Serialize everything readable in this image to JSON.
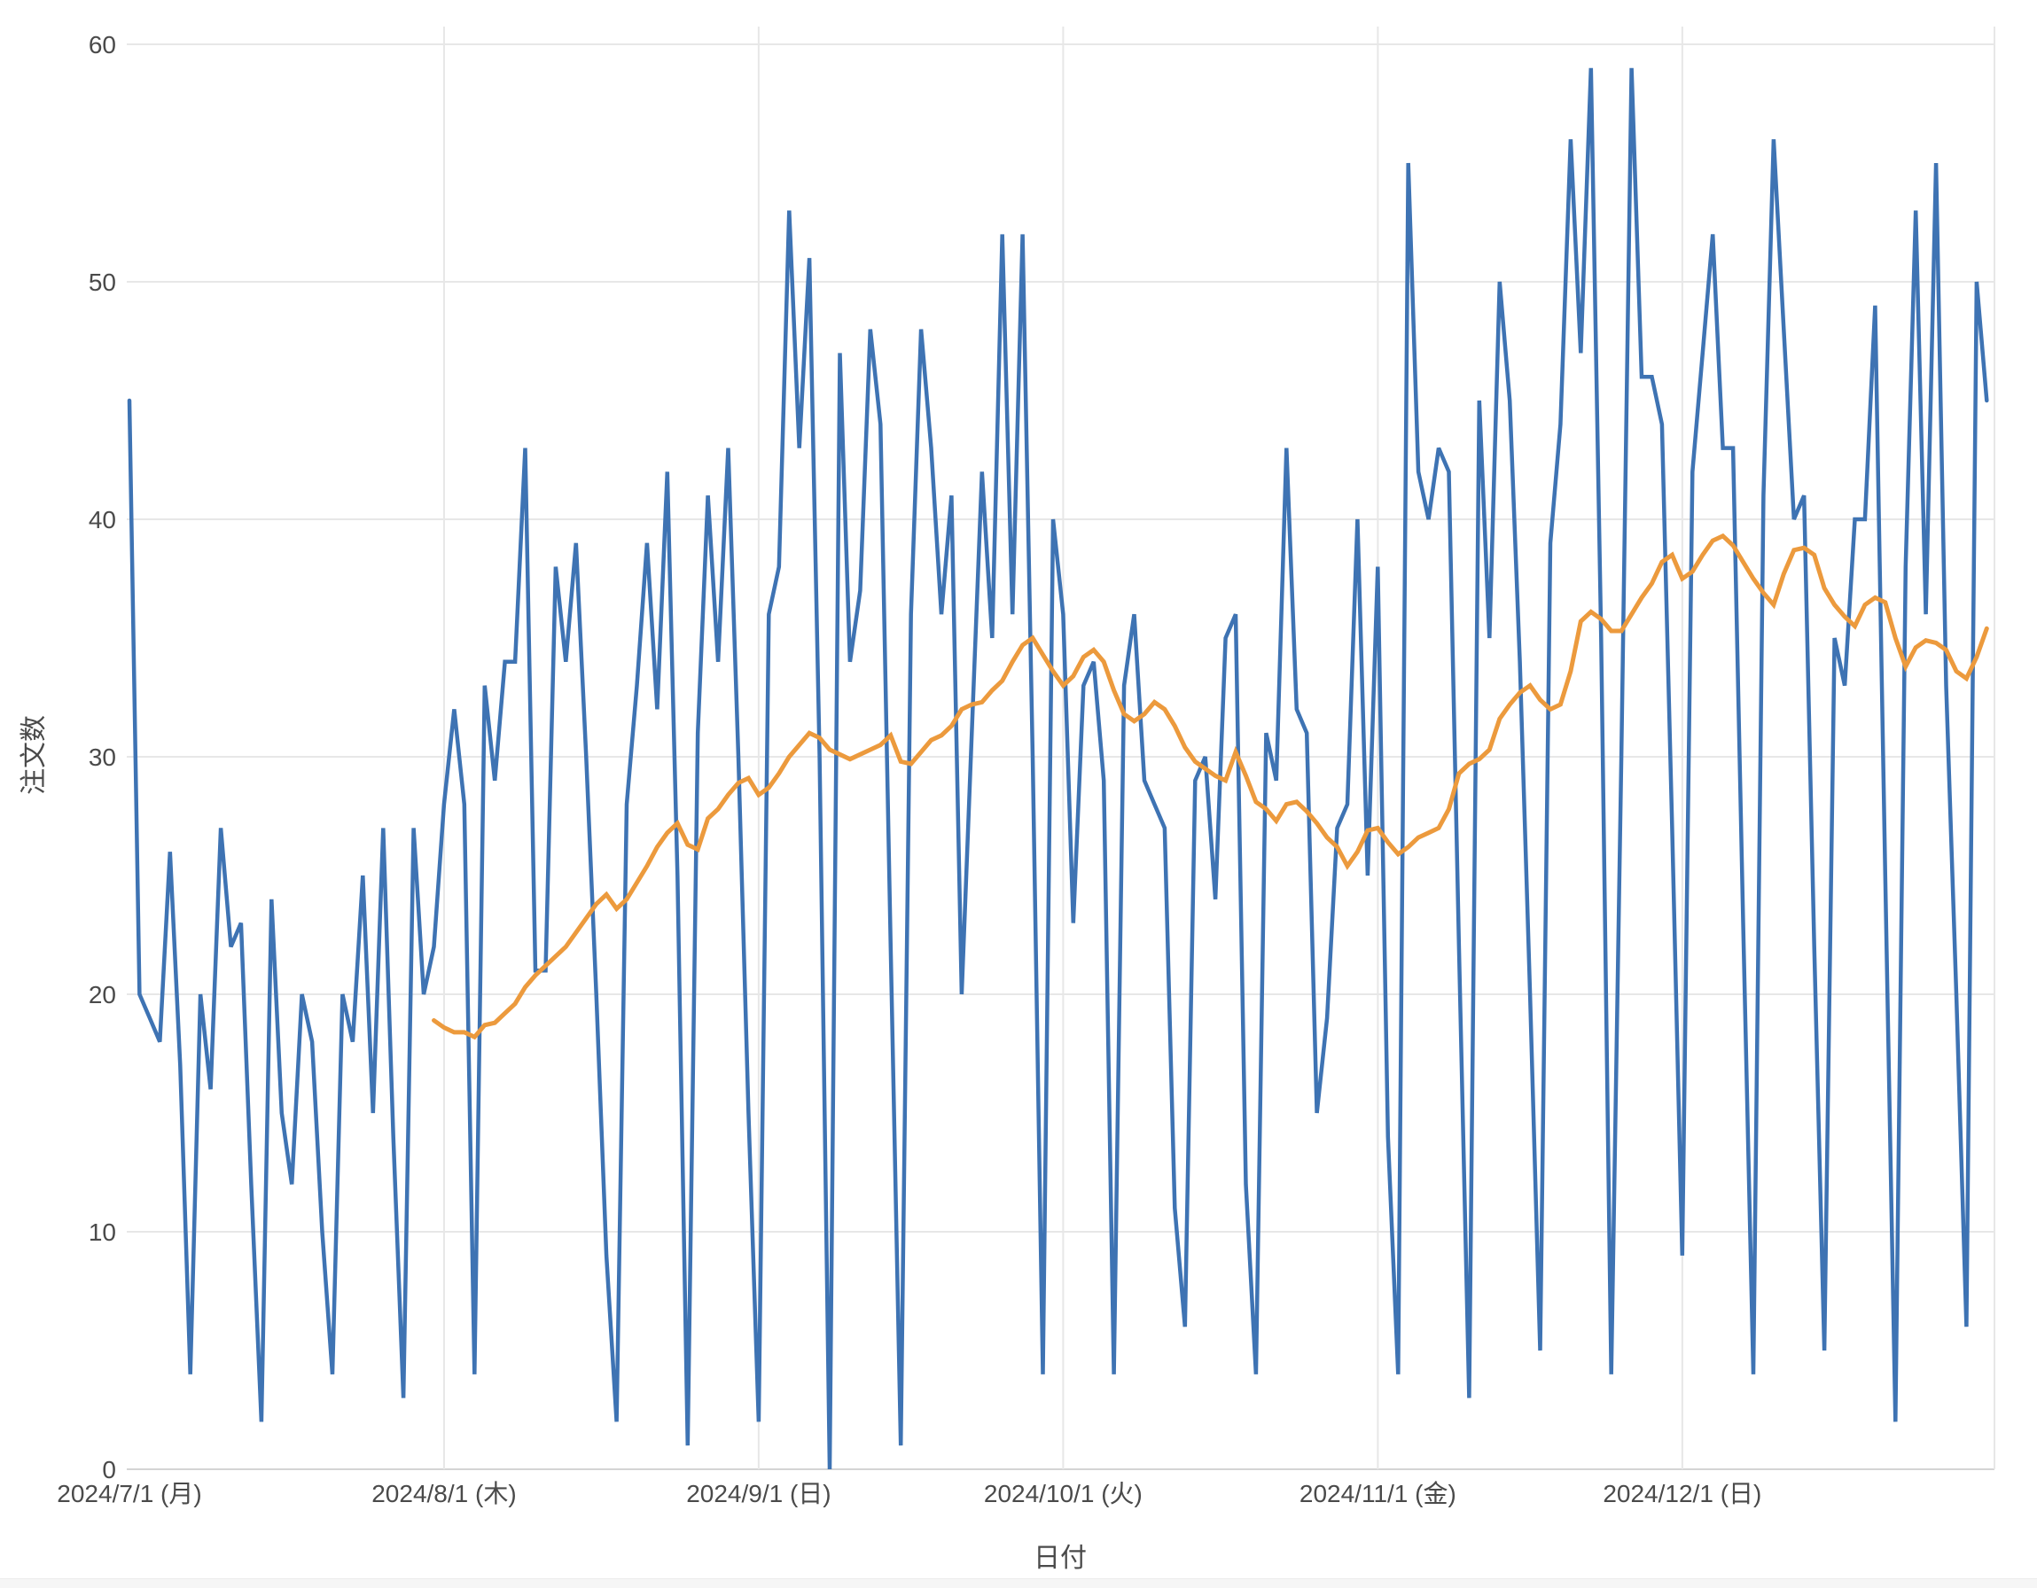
{
  "chart_data": {
    "type": "line",
    "title": "",
    "xlabel": "日付",
    "ylabel": "注文数",
    "x_range": [
      "2024/7/1",
      "2024/12/31"
    ],
    "x_tick_labels": [
      "2024/7/1 (月)",
      "2024/8/1 (木)",
      "2024/9/1 (日)",
      "2024/10/1 (火)",
      "2024/11/1 (金)",
      "2024/12/1 (日)"
    ],
    "x_tick_day_index": [
      0,
      31,
      62,
      92,
      123,
      153
    ],
    "y_ticks": [
      0,
      10,
      20,
      30,
      40,
      50,
      60
    ],
    "ylim": [
      0,
      60
    ],
    "grid": true,
    "legend": "none",
    "colors": {
      "daily_series": "#3e73b3",
      "moving_average": "#ec9a3d",
      "gridline": "#e7e7e7",
      "axis_line": "#d4d4d4",
      "text": "#4a4a4a"
    },
    "series": [
      {
        "name": "daily-orders",
        "color": "#3e73b3",
        "stroke_width": 4.5,
        "start_day": 0,
        "values": [
          45,
          20,
          19,
          18,
          26,
          17,
          4,
          20,
          16,
          27,
          22,
          23,
          12,
          2,
          24,
          15,
          12,
          20,
          18,
          10,
          4,
          20,
          18,
          25,
          15,
          27,
          14,
          3,
          27,
          20,
          22,
          28,
          32,
          28,
          4,
          33,
          29,
          34,
          34,
          43,
          21,
          21,
          38,
          34,
          39,
          30,
          20,
          9,
          2,
          28,
          33,
          39,
          32,
          42,
          25,
          1,
          31,
          41,
          34,
          43,
          30,
          15,
          2,
          36,
          38,
          53,
          43,
          51,
          30,
          0,
          47,
          34,
          37,
          48,
          44,
          22,
          1,
          36,
          48,
          43,
          36,
          41,
          20,
          31,
          42,
          35,
          52,
          36,
          52,
          30,
          4,
          40,
          36,
          23,
          33,
          34,
          29,
          4,
          33,
          36,
          29,
          28,
          27,
          11,
          6,
          29,
          30,
          24,
          35,
          36,
          12,
          4,
          31,
          29,
          43,
          32,
          31,
          15,
          19,
          27,
          28,
          40,
          25,
          38,
          14,
          4,
          55,
          42,
          40,
          43,
          42,
          22,
          3,
          45,
          35,
          50,
          45,
          34,
          20,
          5,
          39,
          44,
          56,
          47,
          59,
          35,
          4,
          30,
          59,
          46,
          46,
          44,
          27,
          9,
          42,
          47,
          52,
          43,
          43,
          23,
          4,
          41,
          56,
          48,
          40,
          41,
          22,
          5,
          35,
          33,
          40,
          40,
          49,
          25,
          2,
          38,
          53,
          36,
          55,
          33,
          20,
          6,
          50,
          45
        ]
      },
      {
        "name": "moving-average",
        "color": "#ec9a3d",
        "stroke_width": 5,
        "start_day": 30,
        "values": [
          18.9,
          18.6,
          18.4,
          18.4,
          18.2,
          18.7,
          18.8,
          19.2,
          19.6,
          20.3,
          20.8,
          21.2,
          21.6,
          22.0,
          22.6,
          23.2,
          23.8,
          24.2,
          23.6,
          24.0,
          24.7,
          25.4,
          26.2,
          26.8,
          27.2,
          26.3,
          26.1,
          27.4,
          27.8,
          28.4,
          28.9,
          29.1,
          28.4,
          28.7,
          29.3,
          30.0,
          30.5,
          31.0,
          30.8,
          30.3,
          30.1,
          29.9,
          30.1,
          30.3,
          30.5,
          30.9,
          29.8,
          29.7,
          30.2,
          30.7,
          30.9,
          31.3,
          32.0,
          32.2,
          32.3,
          32.8,
          33.2,
          34.0,
          34.7,
          35.0,
          34.3,
          33.6,
          33.0,
          33.4,
          34.2,
          34.5,
          34.0,
          32.8,
          31.8,
          31.5,
          31.8,
          32.3,
          32.0,
          31.3,
          30.4,
          29.8,
          29.5,
          29.2,
          29.0,
          30.2,
          29.2,
          28.1,
          27.8,
          27.3,
          28.0,
          28.1,
          27.7,
          27.2,
          26.6,
          26.2,
          25.4,
          26.0,
          26.9,
          27.0,
          26.4,
          25.9,
          26.2,
          26.6,
          26.8,
          27.0,
          27.8,
          29.3,
          29.7,
          29.9,
          30.3,
          31.6,
          32.2,
          32.7,
          33.0,
          32.4,
          32.0,
          32.2,
          33.6,
          35.7,
          36.1,
          35.8,
          35.3,
          35.3,
          36.0,
          36.7,
          37.3,
          38.2,
          38.5,
          37.5,
          37.8,
          38.5,
          39.1,
          39.3,
          38.9,
          38.2,
          37.5,
          36.9,
          36.4,
          37.7,
          38.7,
          38.8,
          38.5,
          37.1,
          36.4,
          35.9,
          35.5,
          36.4,
          36.7,
          36.5,
          35.0,
          33.8,
          34.6,
          34.9,
          34.8,
          34.5,
          33.6,
          33.3,
          34.2,
          35.4
        ]
      }
    ]
  }
}
